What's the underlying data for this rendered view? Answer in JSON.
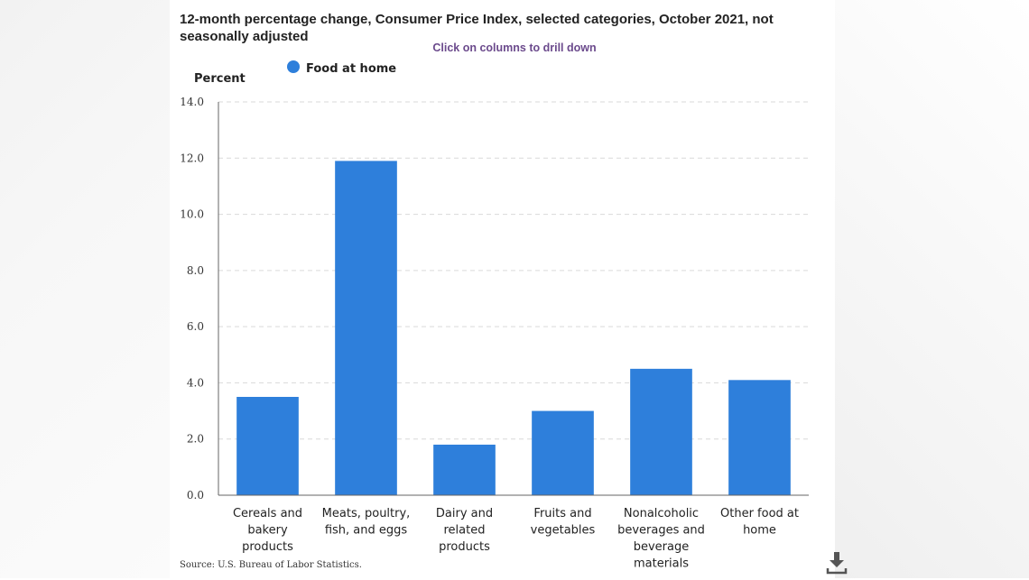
{
  "header": {
    "title": "12-month percentage change, Consumer Price Index, selected categories, October 2021, not seasonally adjusted",
    "drill_hint": "Click on columns to drill down"
  },
  "footer": {
    "source": "Source: U.S. Bureau of Labor Statistics."
  },
  "icons": {
    "download": "download-icon"
  },
  "colors": {
    "bar": "#2e7fdb",
    "grid": "#d9d9d9",
    "axis": "#666666",
    "title": "#222222",
    "drill_hint": "#6b4a8c"
  },
  "chart_data": {
    "type": "bar",
    "title": "12-month percentage change, Consumer Price Index, selected categories, October 2021, not seasonally adjusted",
    "ylabel": "Percent",
    "xlabel": "",
    "ylim": [
      0,
      14
    ],
    "yticks": [
      "0.0",
      "2.0",
      "4.0",
      "6.0",
      "8.0",
      "10.0",
      "12.0",
      "14.0"
    ],
    "grid": true,
    "legend_position": "top-left",
    "categories": [
      [
        "Cereals and",
        "bakery",
        "products"
      ],
      [
        "Meats, poultry,",
        "fish, and eggs"
      ],
      [
        "Dairy and",
        "related",
        "products"
      ],
      [
        "Fruits and",
        "vegetables"
      ],
      [
        "Nonalcoholic",
        "beverages and",
        "beverage",
        "materials"
      ],
      [
        "Other food at",
        "home"
      ]
    ],
    "series": [
      {
        "name": "Food at home",
        "values": [
          3.5,
          11.9,
          1.8,
          3.0,
          4.5,
          4.1
        ]
      }
    ]
  }
}
